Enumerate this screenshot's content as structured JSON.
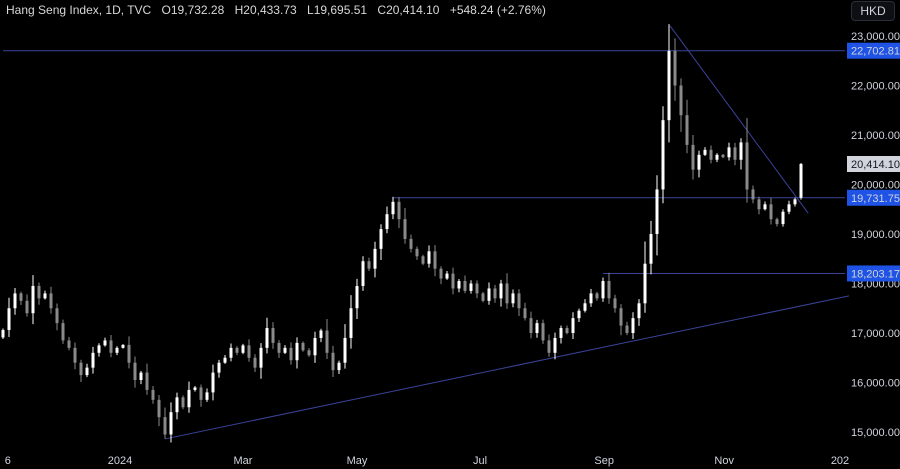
{
  "header": {
    "symbol": "Hang Seng Index, 1D, TVC",
    "open": "O19,732.28",
    "high": "H20,433.73",
    "low": "L19,695.51",
    "close": "C20,414.10",
    "change": "+548.24 (+2.76%)"
  },
  "currency_button": "HKD",
  "colors": {
    "background": "#000000",
    "candle_up": "#ffffff",
    "candle_down": "#8a8a8a",
    "line": "#3b4399",
    "badge": "#1e53e5",
    "price_badge": "#d1d4dc"
  },
  "chart_data": {
    "type": "candlestick",
    "title": "Hang Seng Index, 1D, TVC",
    "ylim": [
      14800,
      23300
    ],
    "y_ticks": [
      "23,000.00",
      "22,000.00",
      "21,000.00",
      "20,000.00",
      "19,000.00",
      "18,000.00",
      "17,000.00",
      "16,000.00",
      "15,000.00"
    ],
    "y_tick_values": [
      23000,
      22000,
      21000,
      20000,
      19000,
      18000,
      17000,
      16000,
      15000
    ],
    "x_ticks": [
      {
        "label": "6",
        "index": 0.8
      },
      {
        "label": "2024",
        "index": 19.5
      },
      {
        "label": "Mar",
        "index": 40
      },
      {
        "label": "May",
        "index": 59
      },
      {
        "label": "Jul",
        "index": 79.5
      },
      {
        "label": "Sep",
        "index": 100.2
      },
      {
        "label": "Nov",
        "index": 120.2
      },
      {
        "label": "202",
        "index": 139.5
      }
    ],
    "closes": [
      17060,
      17500,
      17800,
      17650,
      17400,
      17950,
      17700,
      17800,
      17500,
      17200,
      16850,
      16700,
      16400,
      16150,
      16300,
      16600,
      16750,
      16850,
      16600,
      16700,
      16760,
      16400,
      16050,
      16200,
      15850,
      15650,
      15300,
      14950,
      15400,
      15700,
      15500,
      15850,
      15900,
      15650,
      15800,
      16200,
      16400,
      16500,
      16700,
      16600,
      16750,
      16500,
      16300,
      16700,
      17100,
      16800,
      16600,
      16700,
      16450,
      16800,
      16650,
      16550,
      16900,
      17050,
      16600,
      16250,
      16400,
      16900,
      17500,
      17950,
      18450,
      18300,
      18700,
      19100,
      19400,
      19650,
      19300,
      18900,
      18700,
      18550,
      18400,
      18650,
      18300,
      18100,
      18200,
      17900,
      18050,
      17850,
      18000,
      17800,
      17650,
      17900,
      17700,
      18000,
      17600,
      17800,
      17500,
      17300,
      17000,
      17200,
      16850,
      16600,
      16900,
      17100,
      17000,
      17300,
      17450,
      17600,
      17800,
      17700,
      18050,
      17700,
      17500,
      17150,
      17000,
      17300,
      17600,
      18400,
      19000,
      19900,
      21300,
      22700,
      22000,
      21400,
      20800,
      20300,
      20600,
      20700,
      20500,
      20600,
      20550,
      20750,
      20500,
      20850,
      19900,
      19700,
      19500,
      19600,
      19300,
      19200,
      19450,
      19600,
      19700,
      20414.1
    ],
    "last_candle": {
      "open": 19732.28,
      "high": 20433.73,
      "low": 19695.51,
      "close": 20414.1
    },
    "peak_high": 23240,
    "horizontal_levels": [
      {
        "value": 22702.81,
        "label": "22,702.81",
        "from_index": 0
      },
      {
        "value": 19731.75,
        "label": "19,731.75",
        "from_index": 65
      },
      {
        "value": 18203.17,
        "label": "18,203.17",
        "from_index": 100
      }
    ],
    "trend_lines": [
      {
        "from": [
          27,
          14860
        ],
        "to": [
          141,
          17750
        ]
      },
      {
        "from": [
          111.2,
          23200
        ],
        "to": [
          134.2,
          19420
        ]
      }
    ],
    "current_price_label": "20,414.10"
  }
}
